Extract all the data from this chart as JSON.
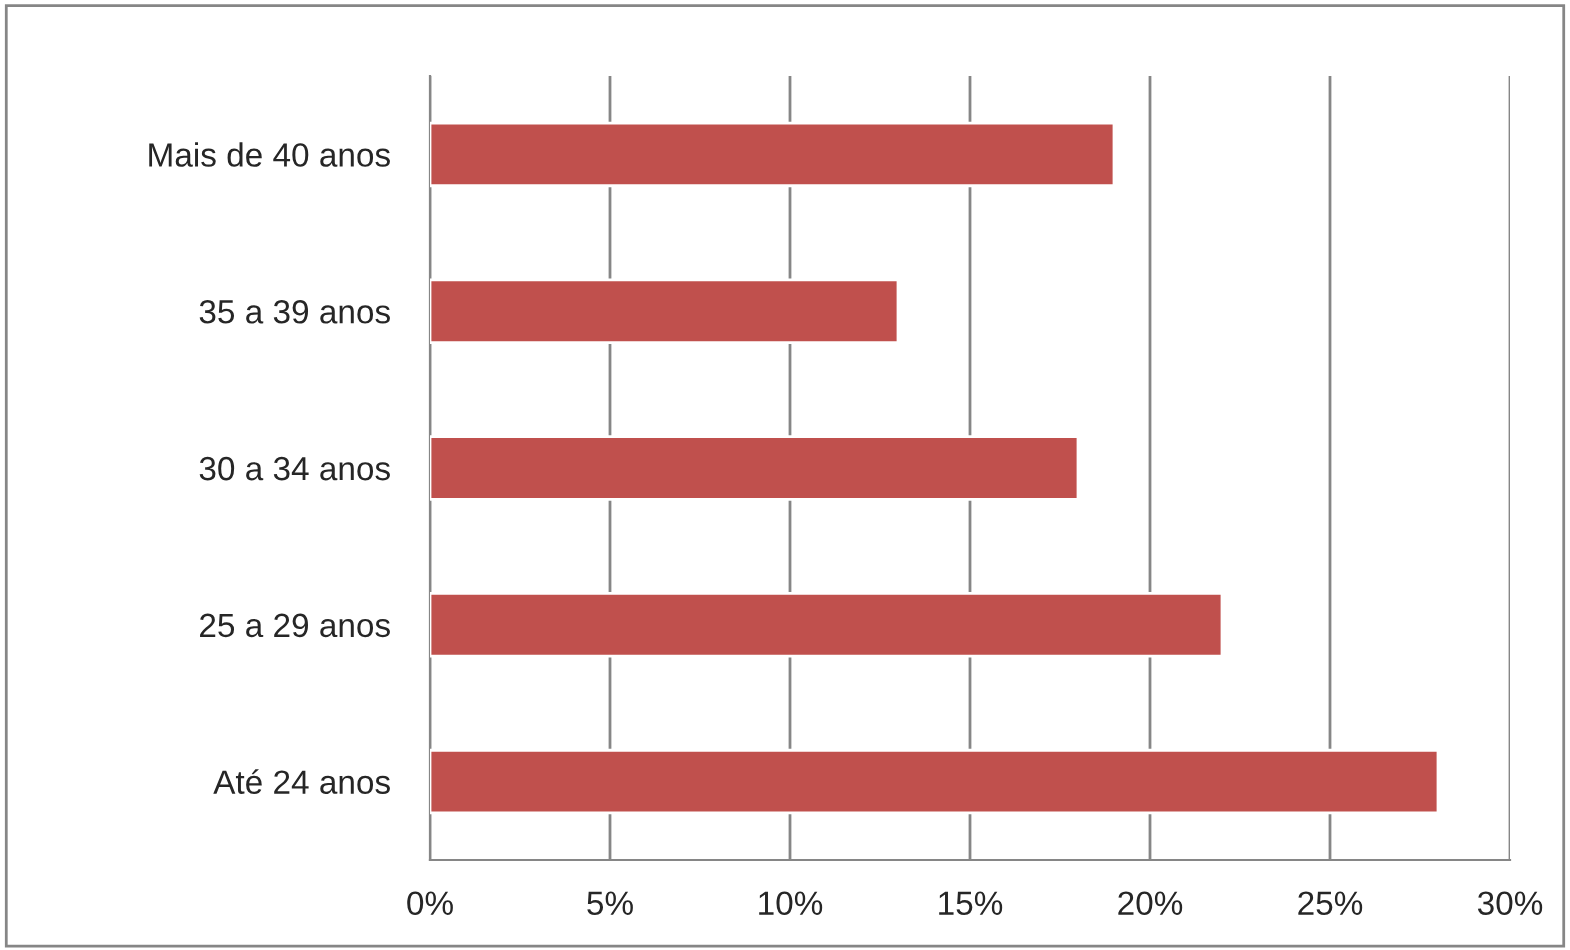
{
  "chart_data": {
    "type": "bar",
    "orientation": "horizontal",
    "categories": [
      "Mais de 40 anos",
      "35 a 39 anos",
      "30 a 34 anos",
      "25 a 29 anos",
      "Até 24 anos"
    ],
    "values": [
      19,
      13,
      18,
      22,
      28
    ],
    "color": "#c0504d",
    "xlim": [
      0,
      30
    ],
    "xticks": [
      {
        "value": 0,
        "label": "0%"
      },
      {
        "value": 5,
        "label": "5%"
      },
      {
        "value": 10,
        "label": "10%"
      },
      {
        "value": 15,
        "label": "15%"
      },
      {
        "value": 20,
        "label": "20%"
      },
      {
        "value": 25,
        "label": "25%"
      },
      {
        "value": 30,
        "label": "30%"
      }
    ],
    "grid": "x",
    "legend": false
  }
}
